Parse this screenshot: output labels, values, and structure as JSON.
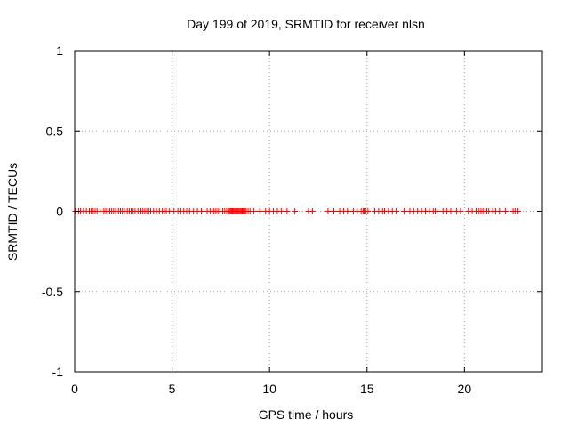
{
  "chart_data": {
    "type": "scatter",
    "title": "Day 199 of 2019, SRMTID for receiver nlsn",
    "xlabel": "GPS time / hours",
    "ylabel": "SRMTID / TECUs",
    "xlim": [
      0,
      24
    ],
    "ylim": [
      -1,
      1
    ],
    "xticks": [
      0,
      5,
      10,
      15,
      20
    ],
    "yticks": [
      -1,
      -0.5,
      0,
      0.5,
      1
    ],
    "xtick_labels": [
      "0",
      "5",
      "10",
      "15",
      "20"
    ],
    "ytick_labels": [
      "-1",
      "-0.5",
      "0",
      "0.5",
      "1"
    ],
    "grid": true,
    "marker": "+",
    "color": "#ff0000",
    "series": [
      {
        "name": "SRMTID",
        "x": [
          0.05,
          0.2,
          0.3,
          0.45,
          0.6,
          0.75,
          0.85,
          0.95,
          1.05,
          1.15,
          1.3,
          1.5,
          1.6,
          1.7,
          1.8,
          1.9,
          2.0,
          2.1,
          2.25,
          2.35,
          2.45,
          2.55,
          2.7,
          2.8,
          2.9,
          3.0,
          3.1,
          3.25,
          3.4,
          3.5,
          3.6,
          3.7,
          3.8,
          3.9,
          4.05,
          4.2,
          4.35,
          4.5,
          4.6,
          4.7,
          4.85,
          5.1,
          5.3,
          5.45,
          5.6,
          5.75,
          5.9,
          6.1,
          6.3,
          6.5,
          6.8,
          6.95,
          7.05,
          7.15,
          7.25,
          7.35,
          7.45,
          7.6,
          7.7,
          7.8,
          7.9,
          7.95,
          8.0,
          8.05,
          8.1,
          8.15,
          8.2,
          8.25,
          8.3,
          8.35,
          8.4,
          8.45,
          8.5,
          8.55,
          8.6,
          8.65,
          8.7,
          8.75,
          8.8,
          8.9,
          9.0,
          9.2,
          9.5,
          9.8,
          10.0,
          10.2,
          10.4,
          10.6,
          10.9,
          11.3,
          12.0,
          12.2,
          13.0,
          13.3,
          13.6,
          13.8,
          14.0,
          14.3,
          14.5,
          14.7,
          14.8,
          14.85,
          14.95,
          15.05,
          15.4,
          15.6,
          15.8,
          15.9,
          16.1,
          16.3,
          16.5,
          16.9,
          17.2,
          17.4,
          17.6,
          17.8,
          18.0,
          18.2,
          18.4,
          18.5,
          18.6,
          18.9,
          19.1,
          19.3,
          19.6,
          19.8,
          20.2,
          20.4,
          20.6,
          20.75,
          20.85,
          20.95,
          21.05,
          21.15,
          21.25,
          21.45,
          21.6,
          21.8,
          22.1,
          22.5,
          22.6,
          22.75
        ],
        "y": [
          0,
          0,
          0,
          0,
          0,
          0,
          0,
          0,
          0,
          0,
          0,
          0,
          0,
          0,
          0,
          0,
          0,
          0,
          0,
          0,
          0,
          0,
          0,
          0,
          0,
          0,
          0,
          0,
          0,
          0,
          0,
          0,
          0,
          0,
          0,
          0,
          0,
          0,
          0,
          0,
          0,
          0,
          0,
          0,
          0,
          0,
          0,
          0,
          0,
          0,
          0,
          0,
          0,
          0,
          0,
          0,
          0,
          0,
          0,
          0,
          0,
          0,
          0,
          0,
          0,
          0,
          0,
          0,
          0,
          0,
          0,
          0,
          0,
          0,
          0,
          0,
          0,
          0,
          0,
          0,
          0,
          0,
          0,
          0,
          0,
          0,
          0,
          0,
          0,
          0,
          0,
          0,
          0,
          0,
          0,
          0,
          0,
          0,
          0,
          0,
          0,
          0,
          0,
          0,
          0,
          0,
          0,
          0,
          0,
          0,
          0,
          0,
          0,
          0,
          0,
          0,
          0,
          0,
          0,
          0,
          0,
          0,
          0,
          0,
          0,
          0,
          0,
          0,
          0,
          0,
          0,
          0,
          0,
          0,
          0,
          0,
          0,
          0,
          0,
          0,
          0,
          0
        ]
      }
    ]
  }
}
